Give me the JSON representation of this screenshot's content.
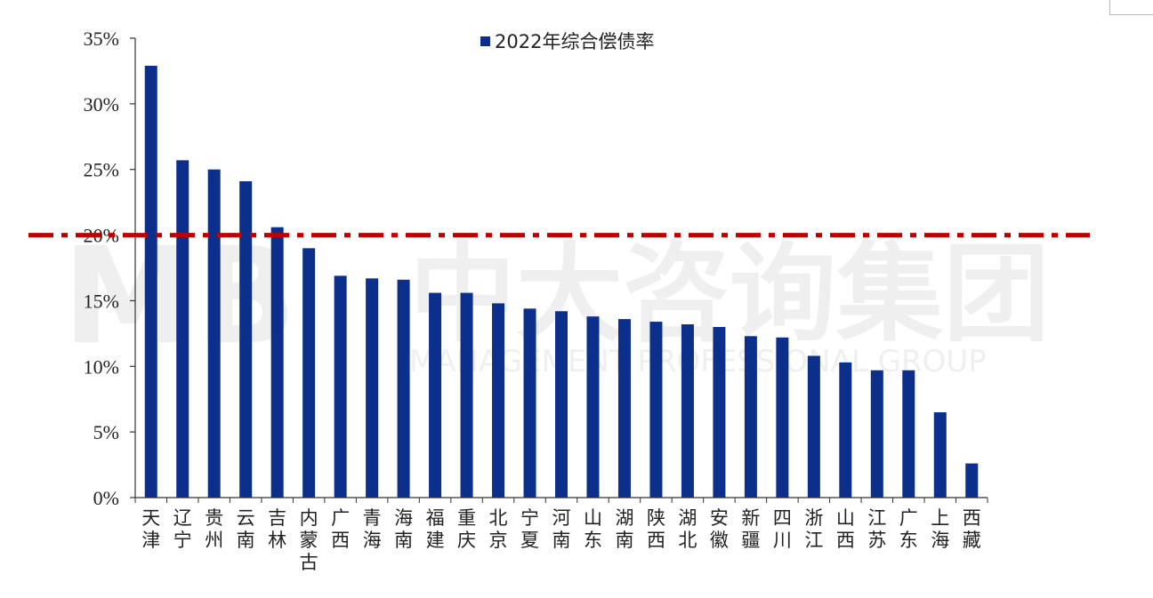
{
  "chart_data": {
    "type": "bar",
    "categories": [
      "天津",
      "辽宁",
      "贵州",
      "云南",
      "吉林",
      "内蒙古",
      "广西",
      "青海",
      "海南",
      "福建",
      "重庆",
      "北京",
      "宁夏",
      "河南",
      "山东",
      "湖南",
      "陕西",
      "湖北",
      "安徽",
      "新疆",
      "四川",
      "浙江",
      "山西",
      "江苏",
      "广东",
      "上海",
      "西藏"
    ],
    "series": [
      {
        "name": "2022年综合偿债率",
        "color": "#0b2f8a",
        "values": [
          32.9,
          25.7,
          25.0,
          24.1,
          20.6,
          19.0,
          16.9,
          16.7,
          16.6,
          15.6,
          15.6,
          14.8,
          14.4,
          14.2,
          13.8,
          13.6,
          13.4,
          13.2,
          13.0,
          12.3,
          12.2,
          10.8,
          10.3,
          9.7,
          9.7,
          6.5,
          2.6
        ]
      }
    ],
    "yticks": [
      "0%",
      "5%",
      "10%",
      "15%",
      "20%",
      "25%",
      "30%",
      "35%"
    ],
    "ylim": [
      0,
      35
    ],
    "reference_line": {
      "value": 20,
      "color": "#c00000",
      "style": "dash-dot"
    },
    "legend_position": "top-center",
    "watermark": {
      "text_cn": "中大咨询集团",
      "text_en": "MANAGEMENT PROFESSIONAL GROUP",
      "logo": "MB"
    },
    "grid": false
  }
}
